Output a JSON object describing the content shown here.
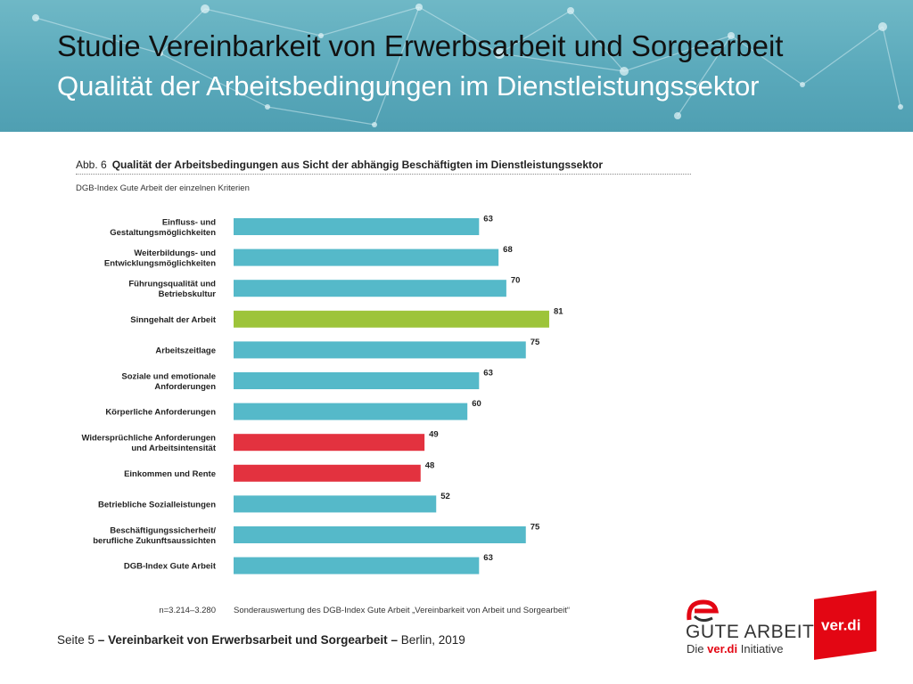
{
  "slide": {
    "title_line1": "Studie Vereinbarkeit von Erwerbsarbeit und Sorgearbeit",
    "title_line2": "Qualität der Arbeitsbedingungen im Dienstleistungssektor"
  },
  "figure": {
    "number": "Abb. 6",
    "title": "Qualität der Arbeitsbedingungen aus Sicht der abhängig Beschäftigten im Dienstleistungssektor",
    "subtitle": "DGB-Index Gute Arbeit der einzelnen Kriterien",
    "n_note": "n=3.214–3.280",
    "source": "Sonderauswertung des DGB-Index Gute Arbeit „Vereinbarkeit von Arbeit und Sorgearbeit“"
  },
  "chart_data": {
    "type": "bar",
    "orientation": "horizontal",
    "title": "Qualität der Arbeitsbedingungen aus Sicht der abhängig Beschäftigten im Dienstleistungssektor",
    "xlabel": "",
    "ylabel": "",
    "xlim": [
      0,
      100
    ],
    "grid": false,
    "categories": [
      [
        "Einfluss- und",
        "Gestaltungsmöglichkeiten"
      ],
      [
        "Weiterbildungs- und",
        "Entwicklungsmöglichkeiten"
      ],
      [
        "Führungsqualität und",
        "Betriebskultur"
      ],
      [
        "Sinngehalt der Arbeit"
      ],
      [
        "Arbeitszeitlage"
      ],
      [
        "Soziale und emotionale",
        "Anforderungen"
      ],
      [
        "Körperliche Anforderungen"
      ],
      [
        "Widersprüchliche Anforderungen",
        "und Arbeitsintensität"
      ],
      [
        "Einkommen und Rente"
      ],
      [
        "Betriebliche Sozialleistungen"
      ],
      [
        "Beschäftigungssicherheit/",
        "berufliche Zukunftsaussichten"
      ],
      [
        "DGB-Index Gute Arbeit"
      ]
    ],
    "values": [
      63,
      68,
      70,
      81,
      75,
      63,
      60,
      49,
      48,
      52,
      75,
      63
    ],
    "bar_colors": [
      "#55b9c9",
      "#55b9c9",
      "#55b9c9",
      "#9dc43a",
      "#55b9c9",
      "#55b9c9",
      "#55b9c9",
      "#e3323f",
      "#e3323f",
      "#55b9c9",
      "#55b9c9",
      "#55b9c9"
    ]
  },
  "footer": {
    "page": "Seite 5",
    "sep": "–",
    "title": "Vereinbarkeit von Erwerbsarbeit und Sorgearbeit",
    "place_year": "Berlin, 2019"
  },
  "logos": {
    "gute_arbeit": "GUTE ARBEIT",
    "sub_die": "Die",
    "sub_verdi": "ver.di",
    "sub_initiative": "Initiative",
    "verdi": "ver.di"
  }
}
